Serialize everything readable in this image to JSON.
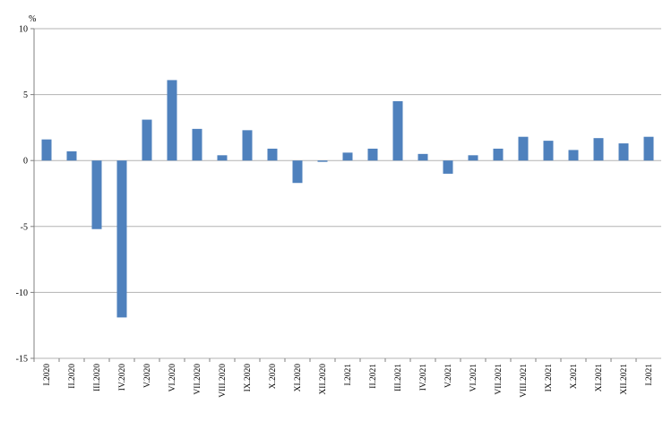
{
  "chart_data": {
    "type": "bar",
    "ylabel": "%",
    "ylim": [
      -15,
      10
    ],
    "yticks": [
      10,
      5,
      0,
      -5,
      -10,
      -15
    ],
    "grid": true,
    "legend": "none",
    "bar_color": "#4f81bd",
    "categories": [
      "I.2020",
      "II.2020",
      "III.2020",
      "IV.2020",
      "V.2020",
      "VI.2020",
      "VII.2020",
      "VIII.2020",
      "IX.2020",
      "X.2020",
      "XI.2020",
      "XII.2020",
      "I.2021",
      "II.2021",
      "III.2021",
      "IV.2021",
      "V.2021",
      "VI.2021",
      "VII.2021",
      "VIII.2021",
      "IX.2021",
      "X.2021",
      "XI.2021",
      "XII.2021",
      "I.2021"
    ],
    "values": [
      1.6,
      0.7,
      -5.2,
      -11.9,
      3.1,
      6.1,
      2.4,
      0.4,
      2.3,
      0.9,
      -1.7,
      -0.1,
      0.6,
      0.9,
      4.5,
      0.5,
      -1.0,
      0.4,
      0.9,
      1.8,
      1.5,
      0.8,
      1.7,
      1.3,
      1.8
    ]
  }
}
